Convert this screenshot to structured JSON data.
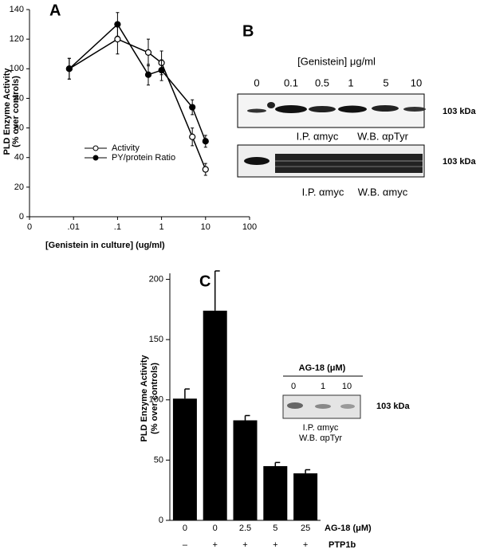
{
  "panels": [
    "A",
    "B",
    "C"
  ],
  "chart_data": [
    {
      "type": "line",
      "xlabel": "[Genistein in culture]  (ug/ml)",
      "ylabel": [
        "PLD Enzyme Activity",
        "(% over controls)"
      ],
      "x": [
        0.008,
        0.1,
        0.5,
        1,
        5,
        10
      ],
      "xscale": "log",
      "xlim": [
        0.001,
        100
      ],
      "xticks": [
        {
          "value": 0.001,
          "label": "0"
        },
        {
          "value": 0.01,
          "label": ".01"
        },
        {
          "value": 0.1,
          "label": ".1"
        },
        1,
        10,
        100
      ],
      "ylim": [
        0,
        140
      ],
      "yticks": [
        0,
        20,
        40,
        60,
        80,
        100,
        120,
        140
      ],
      "series": [
        {
          "name": "Activity",
          "color": "#000000",
          "marker_fill": "#ffffff",
          "values": [
            100,
            120,
            111,
            104,
            54,
            32
          ],
          "errors": [
            7,
            10,
            9,
            8,
            6,
            4
          ]
        },
        {
          "name": "PY/protein Ratio",
          "color": "#000000",
          "marker_fill": "#000000",
          "values": [
            100,
            130,
            96,
            99,
            74,
            51
          ],
          "errors": [
            7,
            8,
            7,
            7,
            5,
            4
          ]
        }
      ]
    },
    {
      "type": "bar",
      "ylabel": [
        "PLD Enzyme Activity",
        "(% over controls)"
      ],
      "categories": [
        "0",
        "0",
        "2.5",
        "5",
        "25"
      ],
      "category_label": "AG-18 (μM)",
      "sub_categories": [
        "–",
        "+",
        "+",
        "+",
        "+"
      ],
      "sub_category_label": "PTP1b",
      "values": [
        101,
        174,
        83,
        45,
        39
      ],
      "errors": [
        8,
        33,
        4,
        3,
        3
      ],
      "color": "#000000",
      "ylim": [
        0,
        205
      ],
      "yticks": [
        0,
        50,
        100,
        150,
        200
      ]
    }
  ],
  "blot_b": {
    "title": "[Genistein] μg/ml",
    "lanes": [
      "0",
      "0.1",
      "0.5",
      "1",
      "5",
      "10"
    ],
    "top": {
      "marker": "103 kDa",
      "ip": "I.P. αmyc",
      "wb": "W.B. αpTyr"
    },
    "bottom": {
      "marker": "103 kDa",
      "ip": "I.P. αmyc",
      "wb": "W.B. αmyc"
    }
  },
  "blot_c": {
    "title": "AG-18 (μM)",
    "lanes": [
      "0",
      "1",
      "10"
    ],
    "marker": "103 kDa",
    "ip": "I.P. αmyc",
    "wb": "W.B. αpTyr"
  }
}
